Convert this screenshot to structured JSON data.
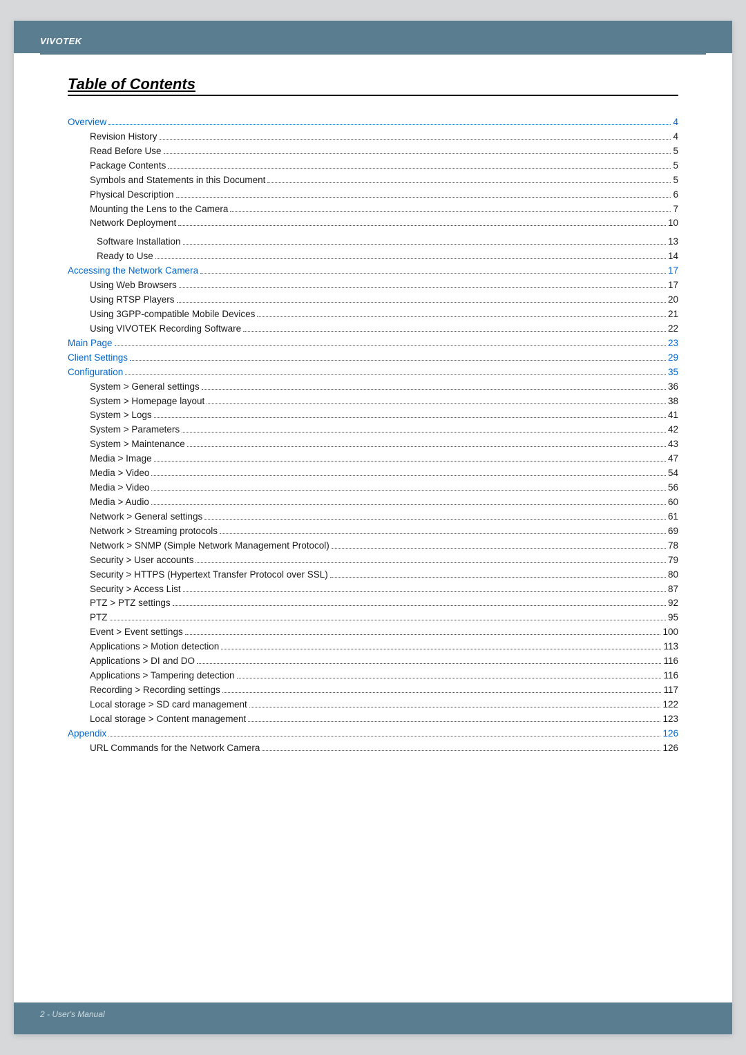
{
  "brand": "VIVOTEK",
  "title": "Table of Contents",
  "footer": "2 - User's Manual",
  "colors": {
    "page_bg": "#ffffff",
    "outer_bg": "#d6d8da",
    "bar_bg": "#5a7d8f",
    "link_color": "#0066cc",
    "text_color": "#1a1a1a"
  },
  "toc": [
    {
      "label": "Overview",
      "page": "4",
      "level": "section"
    },
    {
      "label": "Revision History",
      "page": "4",
      "level": "sub"
    },
    {
      "label": "Read Before Use",
      "page": "5",
      "level": "sub"
    },
    {
      "label": "Package Contents",
      "page": "5",
      "level": "sub"
    },
    {
      "label": "Symbols and Statements in this Document",
      "page": "5",
      "level": "sub"
    },
    {
      "label": "Physical Description",
      "page": "6",
      "level": "sub"
    },
    {
      "label": "Mounting the Lens to the Camera",
      "page": "7",
      "level": "sub"
    },
    {
      "label": "Network Deployment",
      "page": "10",
      "level": "sub"
    },
    {
      "label": "Software Installation",
      "page": "13",
      "level": "sub2",
      "spacedTop": true
    },
    {
      "label": "Ready to Use",
      "page": "14",
      "level": "sub2"
    },
    {
      "label": "Accessing the Network Camera",
      "page": "17",
      "level": "section"
    },
    {
      "label": "Using Web Browsers",
      "page": "17",
      "level": "sub"
    },
    {
      "label": "Using RTSP Players",
      "page": "20",
      "level": "sub"
    },
    {
      "label": "Using 3GPP-compatible Mobile Devices",
      "page": "21",
      "level": "sub"
    },
    {
      "label": "Using VIVOTEK Recording Software",
      "page": "22",
      "level": "sub"
    },
    {
      "label": "Main Page",
      "page": "23",
      "level": "section"
    },
    {
      "label": "Client Settings",
      "page": "29",
      "level": "section"
    },
    {
      "label": "Configuration",
      "page": "35",
      "level": "section"
    },
    {
      "label": "System > General settings",
      "page": "36",
      "level": "sub"
    },
    {
      "label": "System > Homepage layout ",
      "page": "38",
      "level": "sub"
    },
    {
      "label": "System > Logs",
      "page": "41",
      "level": "sub"
    },
    {
      "label": "System > Parameters ",
      "page": "42",
      "level": "sub"
    },
    {
      "label": "System > Maintenance",
      "page": "43",
      "level": "sub"
    },
    {
      "label": "Media > Image  ",
      "page": "47",
      "level": "sub"
    },
    {
      "label": "Media > Video",
      "page": "54",
      "level": "sub"
    },
    {
      "label": "Media > Video",
      "page": "56",
      "level": "sub"
    },
    {
      "label": "Media > Audio",
      "page": "60",
      "level": "sub"
    },
    {
      "label": "Network > General settings",
      "page": "61",
      "level": "sub"
    },
    {
      "label": "Network > Streaming protocols  ",
      "page": "69",
      "level": "sub"
    },
    {
      "label": "Network > SNMP (Simple Network Management Protocol)",
      "page": "78",
      "level": "sub"
    },
    {
      "label": "Security > User accounts",
      "page": "79",
      "level": "sub"
    },
    {
      "label": "Security > HTTPS (Hypertext Transfer Protocol over SSL)     ",
      "page": "80",
      "level": "sub"
    },
    {
      "label": "Security >  Access List ",
      "page": "87",
      "level": "sub"
    },
    {
      "label": "PTZ > PTZ settings",
      "page": "92",
      "level": "sub"
    },
    {
      "label": "PTZ",
      "page": "95",
      "level": "sub"
    },
    {
      "label": "Event > Event settings",
      "page": "100",
      "level": "sub"
    },
    {
      "label": "Applications > Motion detection",
      "page": "113",
      "level": "sub"
    },
    {
      "label": "Applications > DI and DO",
      "page": "116",
      "level": "sub"
    },
    {
      "label": "Applications > Tampering detection ",
      "page": "116",
      "level": "sub"
    },
    {
      "label": "Recording > Recording settings ",
      "page": "117",
      "level": "sub"
    },
    {
      "label": "Local storage > SD card management",
      "page": "122",
      "level": "sub"
    },
    {
      "label": "Local storage > Content management",
      "page": "123",
      "level": "sub"
    },
    {
      "label": "Appendix",
      "page": "126",
      "level": "section"
    },
    {
      "label": "URL Commands for the Network Camera",
      "page": "126",
      "level": "sub"
    }
  ]
}
